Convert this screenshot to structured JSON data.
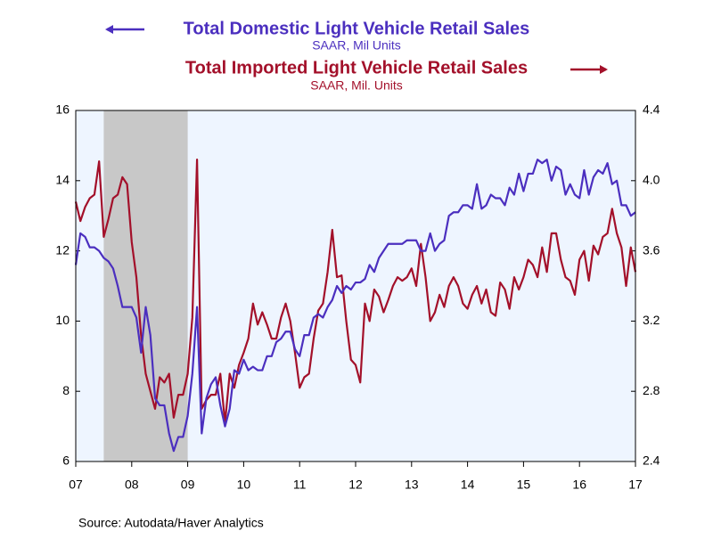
{
  "chart_data": {
    "type": "line",
    "x": [
      2007,
      2007.083,
      2007.167,
      2007.25,
      2007.333,
      2007.417,
      2007.5,
      2007.583,
      2007.667,
      2007.75,
      2007.833,
      2007.917,
      2008,
      2008.083,
      2008.167,
      2008.25,
      2008.333,
      2008.417,
      2008.5,
      2008.583,
      2008.667,
      2008.75,
      2008.833,
      2008.917,
      2009,
      2009.083,
      2009.167,
      2009.25,
      2009.333,
      2009.417,
      2009.5,
      2009.583,
      2009.667,
      2009.75,
      2009.833,
      2009.917,
      2010,
      2010.083,
      2010.167,
      2010.25,
      2010.333,
      2010.417,
      2010.5,
      2010.583,
      2010.667,
      2010.75,
      2010.833,
      2010.917,
      2011,
      2011.083,
      2011.167,
      2011.25,
      2011.333,
      2011.417,
      2011.5,
      2011.583,
      2011.667,
      2011.75,
      2011.833,
      2011.917,
      2012,
      2012.083,
      2012.167,
      2012.25,
      2012.333,
      2012.417,
      2012.5,
      2012.583,
      2012.667,
      2012.75,
      2012.833,
      2012.917,
      2013,
      2013.083,
      2013.167,
      2013.25,
      2013.333,
      2013.417,
      2013.5,
      2013.583,
      2013.667,
      2013.75,
      2013.833,
      2013.917,
      2014,
      2014.083,
      2014.167,
      2014.25,
      2014.333,
      2014.417,
      2014.5,
      2014.583,
      2014.667,
      2014.75,
      2014.833,
      2014.917,
      2015,
      2015.083,
      2015.167,
      2015.25,
      2015.333,
      2015.417,
      2015.5,
      2015.583,
      2015.667,
      2015.75,
      2015.833,
      2015.917,
      2016,
      2016.083,
      2016.167,
      2016.25,
      2016.333,
      2016.417,
      2016.5,
      2016.583,
      2016.667,
      2016.75,
      2016.833,
      2016.917,
      2017
    ],
    "series": [
      {
        "name": "Total Domestic Light Vehicle Retail Sales",
        "unit": "SAAR, Mil Units",
        "color": "#4b2fbf",
        "axis": "y",
        "values": [
          11.6,
          12.5,
          12.4,
          12.1,
          12.1,
          12.0,
          11.8,
          11.7,
          11.5,
          11.0,
          10.4,
          10.4,
          10.4,
          10.1,
          9.1,
          10.4,
          9.6,
          7.8,
          7.6,
          7.6,
          6.8,
          6.3,
          6.7,
          6.7,
          7.3,
          8.5,
          10.4,
          6.8,
          7.8,
          8.2,
          8.4,
          7.6,
          7.0,
          7.5,
          8.6,
          8.5,
          8.9,
          8.6,
          8.7,
          8.6,
          8.6,
          9.0,
          9.0,
          9.4,
          9.5,
          9.7,
          9.7,
          9.2,
          9.0,
          9.6,
          9.6,
          10.1,
          10.2,
          10.1,
          10.4,
          10.6,
          11.0,
          10.8,
          11.0,
          10.9,
          11.1,
          11.1,
          11.2,
          11.6,
          11.4,
          11.8,
          12.0,
          12.2,
          12.2,
          12.2,
          12.2,
          12.3,
          12.3,
          12.3,
          12.0,
          12.0,
          12.5,
          12.0,
          12.2,
          12.3,
          13.0,
          13.1,
          13.1,
          13.3,
          13.3,
          13.2,
          13.9,
          13.2,
          13.3,
          13.6,
          13.5,
          13.5,
          13.3,
          13.8,
          13.6,
          14.2,
          13.7,
          14.2,
          14.2,
          14.6,
          14.5,
          14.6,
          14.0,
          14.4,
          14.3,
          13.6,
          13.9,
          13.6,
          13.5,
          14.3,
          13.6,
          14.1,
          14.3,
          14.2,
          14.5,
          13.9,
          14.0,
          13.3,
          13.3,
          13.0,
          13.1
        ]
      },
      {
        "name": "Total Imported Light Vehicle Retail Sales",
        "unit": "SAAR, Mil. Units",
        "color": "#a3102a",
        "axis": "y2",
        "values": [
          3.88,
          3.77,
          3.85,
          3.9,
          3.92,
          4.11,
          3.68,
          3.78,
          3.9,
          3.92,
          4.02,
          3.98,
          3.65,
          3.45,
          3.12,
          2.9,
          2.8,
          2.7,
          2.88,
          2.85,
          2.9,
          2.65,
          2.78,
          2.78,
          2.9,
          3.22,
          4.12,
          2.7,
          2.75,
          2.78,
          2.78,
          2.9,
          2.62,
          2.9,
          2.82,
          2.95,
          3.02,
          3.1,
          3.3,
          3.18,
          3.25,
          3.18,
          3.1,
          3.1,
          3.22,
          3.3,
          3.2,
          3.02,
          2.82,
          2.88,
          2.9,
          3.1,
          3.26,
          3.3,
          3.48,
          3.72,
          3.45,
          3.46,
          3.2,
          2.98,
          2.95,
          2.85,
          3.3,
          3.2,
          3.38,
          3.34,
          3.25,
          3.32,
          3.4,
          3.45,
          3.43,
          3.45,
          3.5,
          3.4,
          3.64,
          3.45,
          3.2,
          3.25,
          3.35,
          3.28,
          3.4,
          3.45,
          3.4,
          3.3,
          3.27,
          3.35,
          3.4,
          3.3,
          3.38,
          3.25,
          3.23,
          3.42,
          3.38,
          3.27,
          3.45,
          3.38,
          3.45,
          3.55,
          3.52,
          3.45,
          3.62,
          3.48,
          3.7,
          3.7,
          3.55,
          3.45,
          3.43,
          3.35,
          3.55,
          3.6,
          3.43,
          3.63,
          3.58,
          3.68,
          3.7,
          3.84,
          3.7,
          3.62,
          3.4,
          3.62,
          3.48
        ]
      }
    ],
    "shaded_periods": [
      {
        "start": 2007.5,
        "end": 2009.0
      }
    ],
    "xlim": [
      2007,
      2017
    ],
    "xticks": [
      {
        "value": 2007,
        "label": "07"
      },
      {
        "value": 2008,
        "label": "08"
      },
      {
        "value": 2009,
        "label": "09"
      },
      {
        "value": 2010,
        "label": "10"
      },
      {
        "value": 2011,
        "label": "11"
      },
      {
        "value": 2012,
        "label": "12"
      },
      {
        "value": 2013,
        "label": "13"
      },
      {
        "value": 2014,
        "label": "14"
      },
      {
        "value": 2015,
        "label": "15"
      },
      {
        "value": 2016,
        "label": "16"
      },
      {
        "value": 2017,
        "label": "17"
      }
    ],
    "ylim": [
      6,
      16
    ],
    "yticks": [
      6,
      8,
      10,
      12,
      14,
      16
    ],
    "y2lim": [
      2.4,
      4.4
    ],
    "y2ticks": [
      2.4,
      2.8,
      3.2,
      3.6,
      {
        "value": 4.0,
        "label": "4.0"
      },
      4.4
    ],
    "source": "Source:  Autodata/Haver Analytics"
  }
}
